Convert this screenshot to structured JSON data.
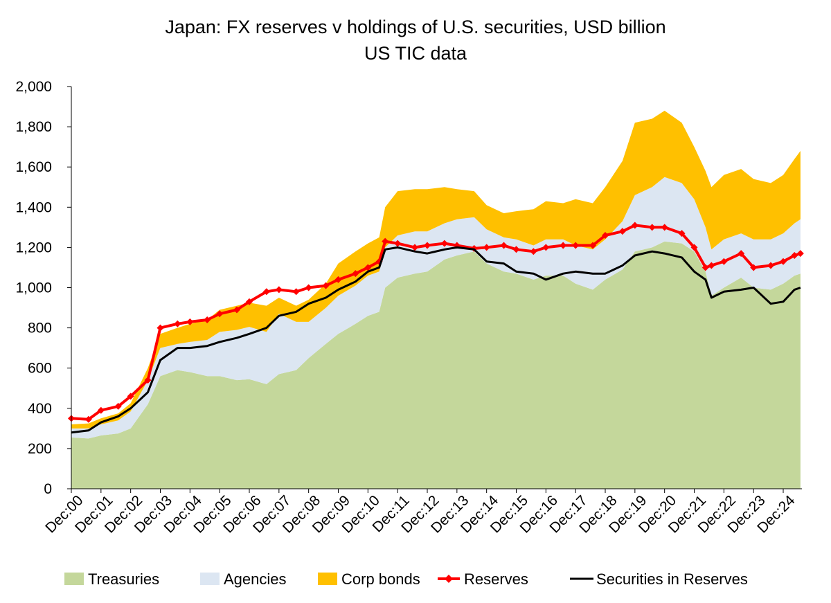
{
  "chart_data": {
    "type": "area",
    "title": "Japan: FX reserves v holdings of U.S. securities, USD billion",
    "subtitle": "US TIC data",
    "xlabel": "",
    "ylabel": "",
    "ylim": [
      0,
      2000
    ],
    "yticks": [
      0,
      200,
      400,
      600,
      800,
      1000,
      1200,
      1400,
      1600,
      1800,
      2000
    ],
    "ytick_labels": [
      "0",
      "200",
      "400",
      "600",
      "800",
      "1,000",
      "1,200",
      "1,400",
      "1,600",
      "1,800",
      "2,000"
    ],
    "xticks": [
      "Dec:00",
      "Dec:01",
      "Dec:02",
      "Dec:03",
      "Dec:04",
      "Dec:05",
      "Dec:06",
      "Dec:07",
      "Dec:08",
      "Dec:09",
      "Dec:10",
      "Dec:11",
      "Dec:12",
      "Dec:13",
      "Dec:14",
      "Dec:15",
      "Dec:16",
      "Dec:17",
      "Dec:18",
      "Dec:19",
      "Dec:20",
      "Dec:21",
      "Dec:22",
      "Dec:23",
      "Dec:24"
    ],
    "legend_position": "bottom",
    "grid": false,
    "x": [
      2000.92,
      2001.5,
      2001.92,
      2002.5,
      2002.92,
      2003.5,
      2003.92,
      2004.5,
      2004.92,
      2005.5,
      2005.92,
      2006.5,
      2006.92,
      2007.5,
      2007.92,
      2008.5,
      2008.92,
      2009.5,
      2009.92,
      2010.5,
      2010.92,
      2011.3,
      2011.5,
      2011.92,
      2012.5,
      2012.92,
      2013.5,
      2013.92,
      2014.5,
      2014.92,
      2015.5,
      2015.92,
      2016.5,
      2016.92,
      2017.5,
      2017.92,
      2018.5,
      2018.92,
      2019.5,
      2019.92,
      2020.5,
      2020.92,
      2021.5,
      2021.92,
      2022.3,
      2022.5,
      2022.92,
      2023.5,
      2023.92,
      2024.5,
      2024.92,
      2025.3,
      2025.5
    ],
    "series": [
      {
        "name": "Treasuries",
        "style": "stacked-area",
        "color": "#c4d79b",
        "values": [
          255,
          250,
          265,
          275,
          300,
          420,
          560,
          590,
          580,
          560,
          560,
          540,
          545,
          520,
          570,
          590,
          650,
          720,
          770,
          820,
          860,
          880,
          1000,
          1050,
          1070,
          1080,
          1140,
          1160,
          1180,
          1120,
          1080,
          1070,
          1040,
          1060,
          1060,
          1020,
          990,
          1040,
          1090,
          1180,
          1200,
          1230,
          1220,
          1180,
          1080,
          960,
          1000,
          1050,
          1000,
          990,
          1020,
          1060,
          1070
        ]
      },
      {
        "name": "Agencies",
        "style": "stacked-area",
        "color": "#dce6f2",
        "values": [
          45,
          50,
          55,
          65,
          85,
          120,
          140,
          130,
          150,
          180,
          220,
          250,
          260,
          260,
          300,
          240,
          180,
          180,
          190,
          190,
          200,
          200,
          200,
          210,
          210,
          200,
          180,
          180,
          170,
          170,
          170,
          170,
          170,
          180,
          180,
          190,
          200,
          200,
          240,
          280,
          300,
          320,
          300,
          260,
          220,
          230,
          240,
          220,
          240,
          250,
          250,
          260,
          270
        ]
      },
      {
        "name": "Corp bonds",
        "style": "stacked-area",
        "color": "#ffc000",
        "values": [
          20,
          25,
          30,
          35,
          40,
          60,
          70,
          80,
          90,
          100,
          110,
          120,
          120,
          130,
          80,
          80,
          110,
          120,
          160,
          170,
          160,
          170,
          200,
          220,
          210,
          210,
          180,
          150,
          130,
          120,
          120,
          140,
          180,
          190,
          180,
          230,
          230,
          260,
          300,
          360,
          340,
          330,
          300,
          260,
          280,
          310,
          320,
          320,
          300,
          280,
          290,
          320,
          340
        ]
      },
      {
        "name": "Reserves",
        "style": "line-marker",
        "color": "#ff0000",
        "values": [
          350,
          345,
          390,
          410,
          460,
          540,
          800,
          820,
          830,
          840,
          870,
          890,
          930,
          980,
          990,
          980,
          1000,
          1010,
          1040,
          1070,
          1100,
          1130,
          1230,
          1220,
          1200,
          1210,
          1220,
          1210,
          1195,
          1200,
          1210,
          1190,
          1180,
          1200,
          1210,
          1210,
          1210,
          1260,
          1280,
          1310,
          1300,
          1300,
          1270,
          1200,
          1100,
          1110,
          1130,
          1170,
          1100,
          1110,
          1130,
          1160,
          1170
        ]
      },
      {
        "name": "Securities in Reserves",
        "style": "line",
        "color": "#000000",
        "values": [
          280,
          290,
          330,
          360,
          400,
          480,
          640,
          700,
          700,
          710,
          730,
          750,
          770,
          800,
          860,
          880,
          920,
          950,
          990,
          1030,
          1080,
          1100,
          1190,
          1200,
          1180,
          1170,
          1190,
          1200,
          1190,
          1130,
          1120,
          1080,
          1070,
          1040,
          1070,
          1080,
          1070,
          1070,
          1110,
          1160,
          1180,
          1170,
          1150,
          1080,
          1040,
          950,
          980,
          990,
          1000,
          920,
          930,
          990,
          1000
        ]
      }
    ]
  }
}
